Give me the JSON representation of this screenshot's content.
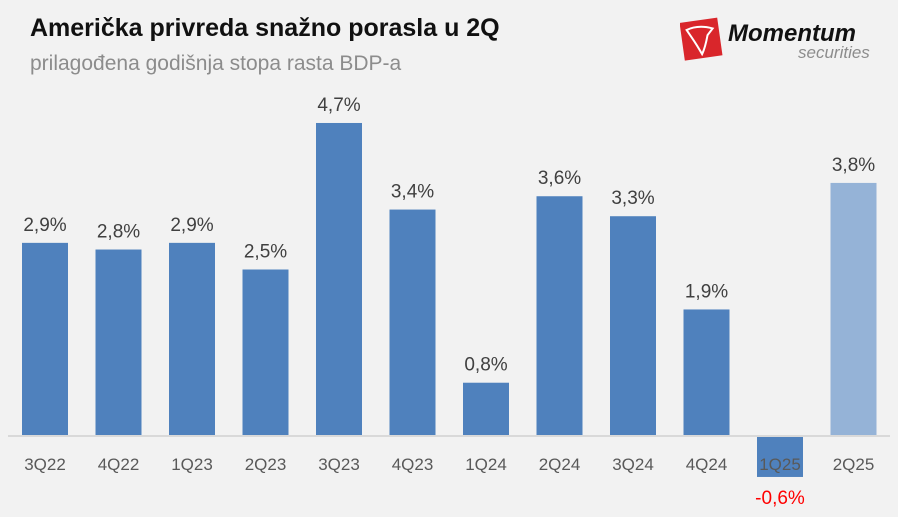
{
  "title": "Američka privreda snažno porasla u 2Q",
  "subtitle": "prilagođena godišnja stopa rasta BDP-a",
  "logo": {
    "name": "Momentum",
    "sub": "securities",
    "color": "#d9262b"
  },
  "colors": {
    "bar": "#4f81bd",
    "highlight": "#95b3d7",
    "negative_label": "#ff0000",
    "label": "#404040",
    "axis": "#d9d9d9"
  },
  "chart_data": {
    "type": "bar",
    "categories": [
      "3Q22",
      "4Q22",
      "1Q23",
      "2Q23",
      "3Q23",
      "4Q23",
      "1Q24",
      "2Q24",
      "3Q24",
      "4Q24",
      "1Q25",
      "2Q25"
    ],
    "values": [
      2.9,
      2.8,
      2.9,
      2.5,
      4.7,
      3.4,
      0.8,
      3.6,
      3.3,
      1.9,
      -0.6,
      3.8
    ],
    "data_labels": [
      "2,9%",
      "2,8%",
      "2,9%",
      "2,5%",
      "4,7%",
      "3,4%",
      "0,8%",
      "3,6%",
      "3,3%",
      "1,9%",
      "-0,6%",
      "3,8%"
    ],
    "highlight_index": 11,
    "title": "Američka privreda snažno porasla u 2Q",
    "subtitle": "prilagođena godišnja stopa rasta BDP-a",
    "xlabel": "",
    "ylabel": "",
    "grid": false,
    "ylim": [
      -0.6,
      4.7
    ]
  }
}
